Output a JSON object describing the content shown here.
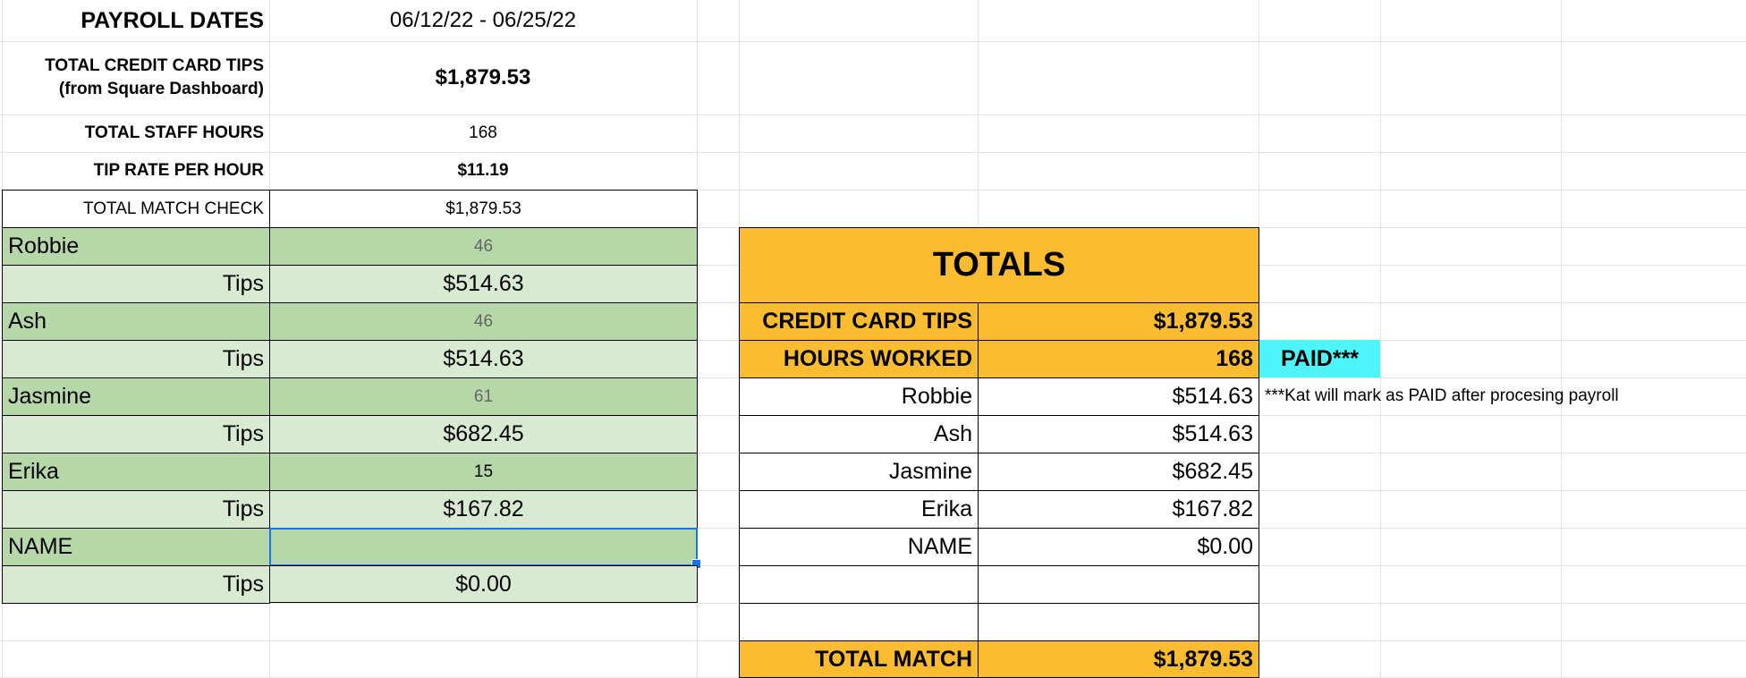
{
  "header": {
    "payroll_dates_label": "PAYROLL DATES",
    "payroll_dates_value": "06/12/22 - 06/25/22",
    "total_cc_tips_label_1": "TOTAL CREDIT CARD TIPS",
    "total_cc_tips_label_2": "(from Square Dashboard)",
    "total_cc_tips_value": "$1,879.53",
    "total_staff_hours_label": "TOTAL STAFF HOURS",
    "total_staff_hours_value": "168",
    "tip_rate_label": "TIP RATE PER HOUR",
    "tip_rate_value": "$11.19",
    "total_match_check_label": "TOTAL MATCH CHECK",
    "total_match_check_value": "$1,879.53"
  },
  "staff": [
    {
      "name": "Robbie",
      "hours": "46",
      "tips_label": "Tips",
      "tips": "$514.63"
    },
    {
      "name": "Ash",
      "hours": "46",
      "tips_label": "Tips",
      "tips": "$514.63"
    },
    {
      "name": "Jasmine",
      "hours": "61",
      "tips_label": "Tips",
      "tips": "$682.45"
    },
    {
      "name": "Erika",
      "hours": "15",
      "tips_label": "Tips",
      "tips": "$167.82"
    },
    {
      "name": "NAME",
      "hours": "",
      "tips_label": "Tips",
      "tips": "$0.00"
    }
  ],
  "totals": {
    "title": "TOTALS",
    "cc_tips_label": "CREDIT CARD TIPS",
    "cc_tips_value": "$1,879.53",
    "hours_label": "HOURS WORKED",
    "hours_value": "168",
    "paid_label": "PAID***",
    "rows": [
      {
        "name": "Robbie",
        "value": "$514.63"
      },
      {
        "name": "Ash",
        "value": "$514.63"
      },
      {
        "name": "Jasmine",
        "value": "$682.45"
      },
      {
        "name": "Erika",
        "value": "$167.82"
      },
      {
        "name": "NAME",
        "value": "$0.00"
      }
    ],
    "note": "***Kat will mark as PAID after procesing payroll",
    "total_match_label": "TOTAL MATCH",
    "total_match_value": "$1,879.53"
  },
  "colors": {
    "green_dark": "#b6d7a8",
    "green_light": "#d9ead3",
    "orange": "#fbbc2f",
    "cyan": "#4df5fb",
    "selection": "#1a73e8"
  }
}
